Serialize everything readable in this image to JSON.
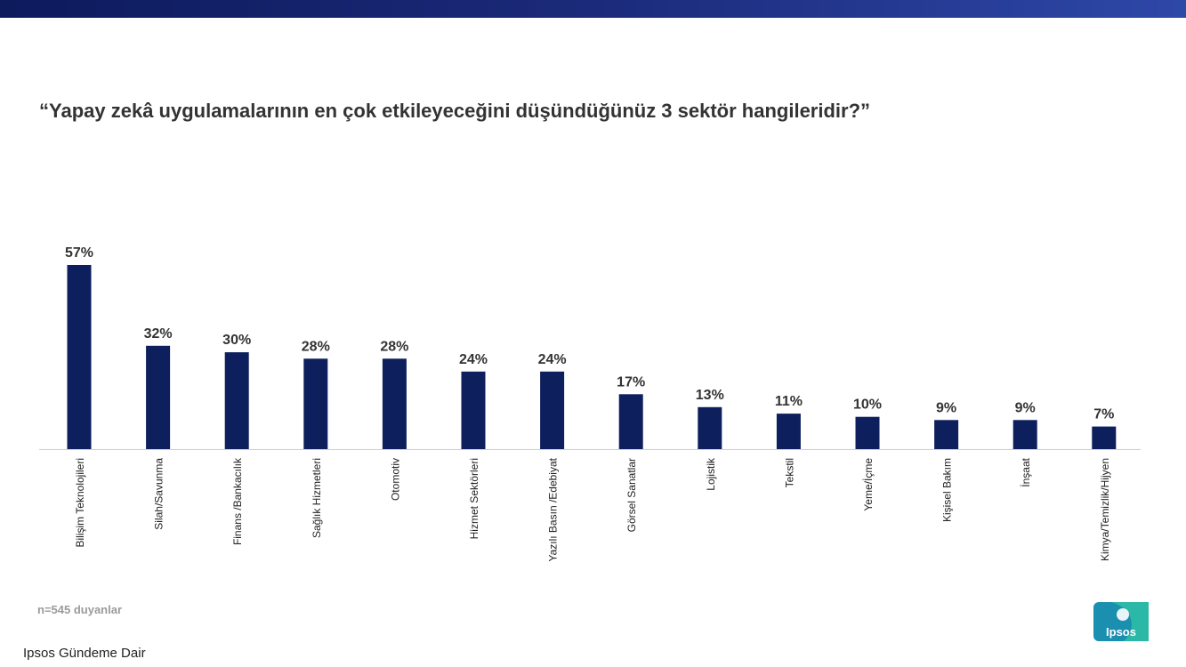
{
  "header": {
    "bar_color": "#1b2a7a"
  },
  "title": "“Yapay zekâ uygulamalarının en çok etkileyeceğini düşündüğünüz 3 sektör hangileridir?”",
  "note": "n=545 duyanlar",
  "footer": "Ipsos Gündeme Dair",
  "logo": {
    "text": "Ipsos",
    "icon": "ipsos-logo-icon",
    "colors": [
      "#1a8fb0",
      "#2bb8a6"
    ]
  },
  "chart_data": {
    "type": "bar",
    "categories": [
      "Bilişim Teknolojileri",
      "Silah/Savunma",
      "Finans /Bankacılık",
      "Sağlık Hizmetleri",
      "Otomotiv",
      "Hizmet Sektörleri",
      "Yazılı Basın /Edebiyat",
      "Görsel Sanatlar",
      "Lojistik",
      "Tekstil",
      "Yeme/İçme",
      "Kişisel Bakım",
      "İnşaat",
      "Kimya/Temizlik/Hijyen"
    ],
    "values": [
      57,
      32,
      30,
      28,
      28,
      24,
      24,
      17,
      13,
      11,
      10,
      9,
      9,
      7
    ],
    "value_labels": [
      "57%",
      "32%",
      "30%",
      "28%",
      "28%",
      "24%",
      "24%",
      "17%",
      "13%",
      "11%",
      "10%",
      "9%",
      "9%",
      "7%"
    ],
    "title": "“Yapay zekâ uygulamalarının en çok etkileyeceğini düşündüğünüz 3 sektör hangileridir?”",
    "xlabel": "",
    "ylabel": "",
    "ylim": [
      0,
      57
    ],
    "grid": false,
    "bar_color": "#0d1f5c"
  }
}
